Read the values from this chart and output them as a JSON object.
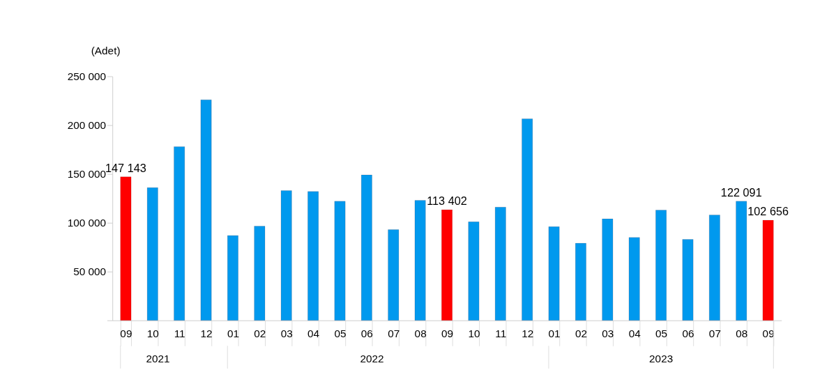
{
  "chart_data": {
    "type": "bar",
    "ylabel": "(Adet)",
    "categories": [
      "09",
      "10",
      "11",
      "12",
      "01",
      "02",
      "03",
      "04",
      "05",
      "06",
      "07",
      "08",
      "09",
      "10",
      "11",
      "12",
      "01",
      "02",
      "03",
      "04",
      "05",
      "06",
      "07",
      "08",
      "09"
    ],
    "values": [
      147143,
      136000,
      178000,
      226000,
      87000,
      96500,
      133000,
      132000,
      122000,
      149000,
      93000,
      123000,
      113402,
      101000,
      116000,
      206500,
      96000,
      79000,
      104000,
      85000,
      113000,
      83000,
      108000,
      122091,
      102656
    ],
    "colors": [
      "#ff0000",
      "#0099ee",
      "#0099ee",
      "#0099ee",
      "#0099ee",
      "#0099ee",
      "#0099ee",
      "#0099ee",
      "#0099ee",
      "#0099ee",
      "#0099ee",
      "#0099ee",
      "#ff0000",
      "#0099ee",
      "#0099ee",
      "#0099ee",
      "#0099ee",
      "#0099ee",
      "#0099ee",
      "#0099ee",
      "#0099ee",
      "#0099ee",
      "#0099ee",
      "#0099ee",
      "#ff0000"
    ],
    "value_labels": [
      "147 143",
      null,
      null,
      null,
      null,
      null,
      null,
      null,
      null,
      null,
      null,
      null,
      "113 402",
      null,
      null,
      null,
      null,
      null,
      null,
      null,
      null,
      null,
      null,
      "122 091",
      "102 656"
    ],
    "annotations": [
      "2021",
      "2022",
      "2023"
    ],
    "ylim": [
      0,
      250000
    ],
    "yticks": [
      {
        "value": 0,
        "label": null
      },
      {
        "value": 50000,
        "label": "50 000"
      },
      {
        "value": 100000,
        "label": "100 000"
      },
      {
        "value": 150000,
        "label": "150 000"
      },
      {
        "value": 200000,
        "label": "200 000"
      },
      {
        "value": 250000,
        "label": "250 000"
      }
    ],
    "grid": false
  }
}
